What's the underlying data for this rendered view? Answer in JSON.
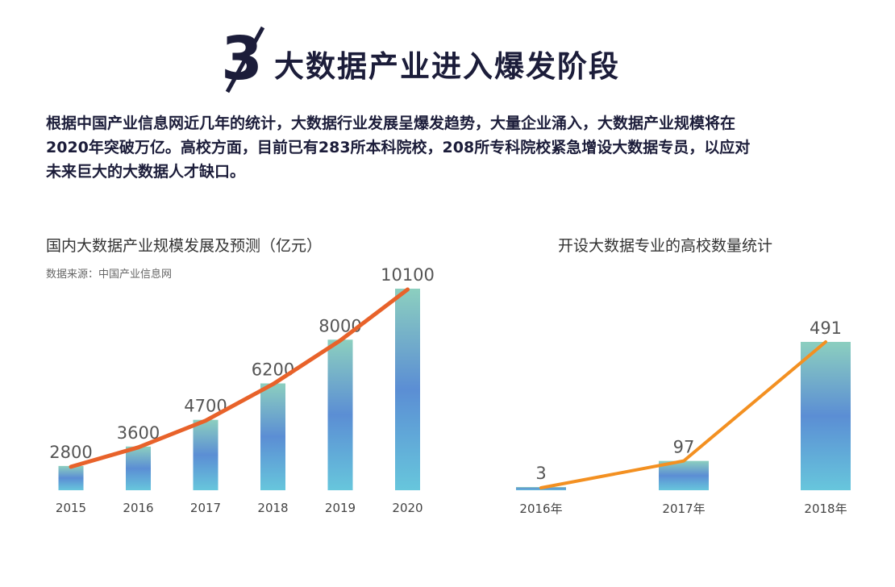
{
  "header": {
    "number": "3",
    "title": "大数据产业进入爆发阶段"
  },
  "intro": {
    "lines": [
      "根据中国产业信息网近几年的统计，大数据行业发展呈爆发趋势，大量企业涌入，大数据产业规模将在",
      "2020年突破万亿。高校方面，目前已有283所本科院校，208所专科院校紧急增设大数据专员，以应对",
      "未来巨大的大数据人才缺口。"
    ]
  },
  "chart_data": [
    {
      "type": "bar",
      "title": "国内大数据产业规模发展及预测（亿元）",
      "source": "数据来源：中国产业信息网",
      "categories": [
        "2015",
        "2016",
        "2017",
        "2018",
        "2019",
        "2020"
      ],
      "values": [
        2800,
        3600,
        4700,
        6200,
        8000,
        10100
      ],
      "overlay": "line",
      "ylim": [
        1800,
        10300
      ],
      "grid": false,
      "legend": "none",
      "colors": {
        "bar_top": "#8ccfbf",
        "bar_mid": "#5b8ed4",
        "bar_bottom": "#67c6dc",
        "line": "#e8622a"
      }
    },
    {
      "type": "bar",
      "title": "开设大数据专业的高校数量统计",
      "categories": [
        "2016年",
        "2017年",
        "2018年"
      ],
      "values": [
        3,
        97,
        491
      ],
      "overlay": "line",
      "ylim": [
        0,
        491
      ],
      "grid": false,
      "legend": "none",
      "colors": {
        "bar_top": "#8ccfbf",
        "bar_mid": "#5b8ed4",
        "bar_bottom": "#67c6dc",
        "line": "#f39021"
      }
    }
  ]
}
